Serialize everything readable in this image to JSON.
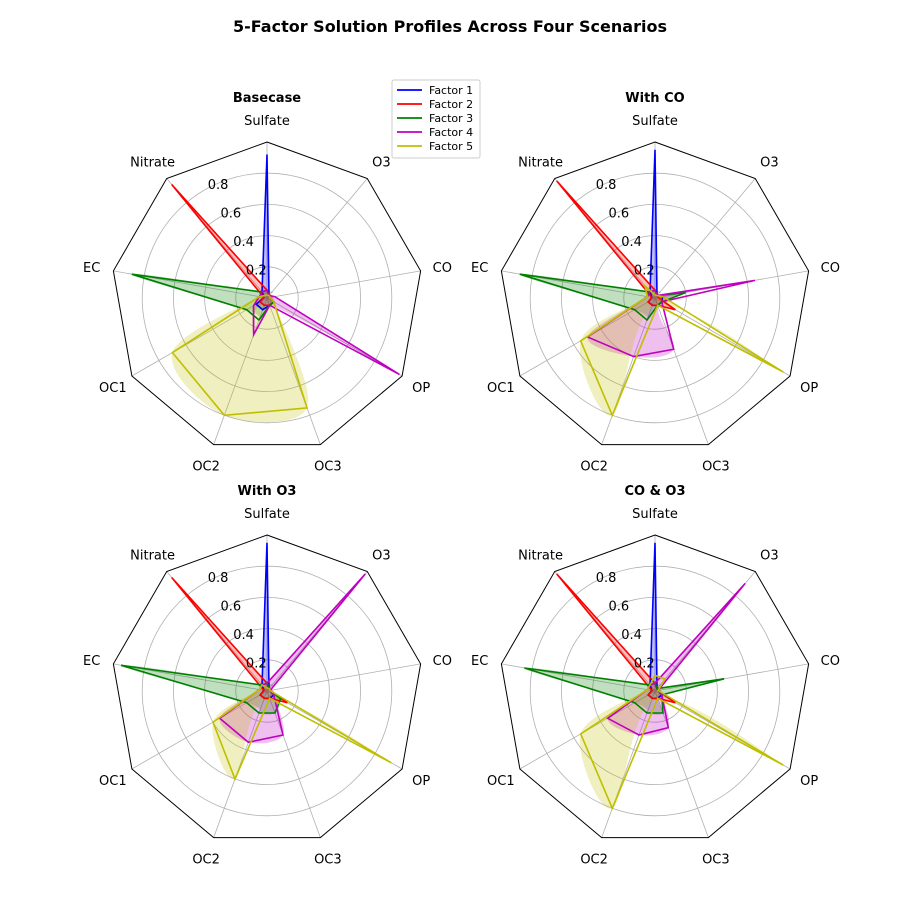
{
  "figure": {
    "title": "5-Factor Solution Profiles Across Four Scenarios"
  },
  "legend": {
    "placement": "top-center",
    "entries": [
      {
        "name": "Factor 1",
        "color": "#0000ff"
      },
      {
        "name": "Factor 2",
        "color": "#ff0000"
      },
      {
        "name": "Factor 3",
        "color": "#008000"
      },
      {
        "name": "Factor 4",
        "color": "#bf00bf"
      },
      {
        "name": "Factor 5",
        "color": "#bfbf00"
      }
    ]
  },
  "chart_data": [
    {
      "type": "radar",
      "title": "Basecase",
      "categories": [
        "Sulfate",
        "O3",
        "CO",
        "OP",
        "OC3",
        "OC2",
        "OC1",
        "EC",
        "Nitrate"
      ],
      "rticks": [
        "0.2",
        "0.4",
        "0.6",
        "0.8"
      ],
      "rlim": [
        0,
        1.0
      ],
      "grid": true,
      "series": [
        {
          "name": "Factor 1",
          "values": [
            0.92,
            0.02,
            0.02,
            0.05,
            0.05,
            0.08,
            0.08,
            0.02,
            0.05
          ]
        },
        {
          "name": "Factor 2",
          "values": [
            0.05,
            0.02,
            0.02,
            0.05,
            0.05,
            0.05,
            0.05,
            0.02,
            0.95
          ]
        },
        {
          "name": "Factor 3",
          "values": [
            0.05,
            0.02,
            0.02,
            0.05,
            0.05,
            0.15,
            0.15,
            0.88,
            0.05
          ]
        },
        {
          "name": "Factor 4",
          "values": [
            0.05,
            0.02,
            0.05,
            0.98,
            0.05,
            0.25,
            0.1,
            0.05,
            0.05
          ]
        },
        {
          "name": "Factor 5",
          "values": [
            0.02,
            0.02,
            0.02,
            0.05,
            0.75,
            0.8,
            0.7,
            0.05,
            0.02
          ]
        }
      ]
    },
    {
      "type": "radar",
      "title": "With CO",
      "categories": [
        "Sulfate",
        "O3",
        "CO",
        "OP",
        "OC3",
        "OC2",
        "OC1",
        "EC",
        "Nitrate"
      ],
      "rticks": [
        "0.2",
        "0.4",
        "0.6",
        "0.8"
      ],
      "rlim": [
        0,
        1.0
      ],
      "grid": true,
      "series": [
        {
          "name": "Factor 1",
          "values": [
            0.95,
            0.02,
            0.05,
            0.05,
            0.05,
            0.05,
            0.05,
            0.02,
            0.05
          ]
        },
        {
          "name": "Factor 2",
          "values": [
            0.05,
            0.02,
            0.02,
            0.15,
            0.05,
            0.05,
            0.05,
            0.02,
            0.98
          ]
        },
        {
          "name": "Factor 3",
          "values": [
            0.05,
            0.02,
            0.2,
            0.05,
            0.05,
            0.15,
            0.15,
            0.88,
            0.05
          ]
        },
        {
          "name": "Factor 4",
          "values": [
            0.05,
            0.02,
            0.65,
            0.05,
            0.35,
            0.4,
            0.5,
            0.05,
            0.05
          ]
        },
        {
          "name": "Factor 5",
          "values": [
            0.02,
            0.02,
            0.05,
            0.95,
            0.05,
            0.8,
            0.55,
            0.05,
            0.1
          ]
        }
      ]
    },
    {
      "type": "radar",
      "title": "With O3",
      "categories": [
        "Sulfate",
        "O3",
        "CO",
        "OP",
        "OC3",
        "OC2",
        "OC1",
        "EC",
        "Nitrate"
      ],
      "rticks": [
        "0.2",
        "0.4",
        "0.6",
        "0.8"
      ],
      "rlim": [
        0,
        1.0
      ],
      "grid": true,
      "series": [
        {
          "name": "Factor 1",
          "values": [
            0.95,
            0.02,
            0.02,
            0.05,
            0.05,
            0.05,
            0.05,
            0.02,
            0.05
          ]
        },
        {
          "name": "Factor 2",
          "values": [
            0.05,
            0.02,
            0.02,
            0.15,
            0.05,
            0.05,
            0.05,
            0.02,
            0.95
          ]
        },
        {
          "name": "Factor 3",
          "values": [
            0.05,
            0.02,
            0.02,
            0.1,
            0.15,
            0.15,
            0.15,
            0.95,
            0.05
          ]
        },
        {
          "name": "Factor 4",
          "values": [
            0.05,
            0.98,
            0.02,
            0.05,
            0.3,
            0.35,
            0.35,
            0.05,
            0.05
          ]
        },
        {
          "name": "Factor 5",
          "values": [
            0.02,
            0.02,
            0.02,
            0.92,
            0.05,
            0.6,
            0.4,
            0.05,
            0.05
          ]
        }
      ]
    },
    {
      "type": "radar",
      "title": "CO & O3",
      "categories": [
        "Sulfate",
        "O3",
        "CO",
        "OP",
        "OC3",
        "OC2",
        "OC1",
        "EC",
        "Nitrate"
      ],
      "rticks": [
        "0.2",
        "0.4",
        "0.6",
        "0.8"
      ],
      "rlim": [
        0,
        1.0
      ],
      "grid": true,
      "series": [
        {
          "name": "Factor 1",
          "values": [
            0.95,
            0.02,
            0.02,
            0.05,
            0.05,
            0.05,
            0.05,
            0.02,
            0.05
          ]
        },
        {
          "name": "Factor 2",
          "values": [
            0.05,
            0.02,
            0.02,
            0.15,
            0.05,
            0.05,
            0.05,
            0.02,
            0.98
          ]
        },
        {
          "name": "Factor 3",
          "values": [
            0.05,
            0.02,
            0.45,
            0.05,
            0.15,
            0.15,
            0.15,
            0.85,
            0.05
          ]
        },
        {
          "name": "Factor 4",
          "values": [
            0.05,
            0.9,
            0.02,
            0.05,
            0.25,
            0.3,
            0.35,
            0.05,
            0.05
          ]
        },
        {
          "name": "Factor 5",
          "values": [
            0.1,
            0.1,
            0.02,
            0.95,
            0.05,
            0.8,
            0.55,
            0.05,
            0.05
          ]
        }
      ]
    }
  ]
}
